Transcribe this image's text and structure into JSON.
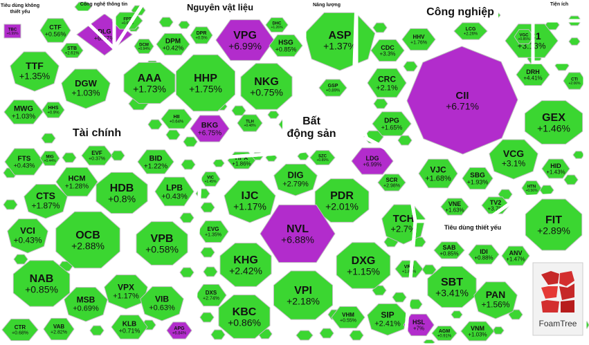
{
  "logo": {
    "text": "FoamTree"
  },
  "colors": {
    "up": "#3bd631",
    "ceiling": "#b22ccc",
    "border": "#bdbdbd",
    "text": "#111111"
  },
  "chart_data": {
    "type": "treemap",
    "groups": [
      {
        "name": "Tiêu dùng không thiết yếu"
      },
      {
        "name": "Công nghệ thông tin"
      },
      {
        "name": "Nguyên vật liệu"
      },
      {
        "name": "Năng lượng"
      },
      {
        "name": "Công nghiệp"
      },
      {
        "name": "Tiện ích"
      },
      {
        "name": "Tài chính"
      },
      {
        "name": "Bất động sản"
      },
      {
        "name": "Tiêu dùng thiết yếu"
      }
    ],
    "cells": [
      {
        "symbol": "TBC",
        "change": "+6.99%",
        "status": "ceiling"
      },
      {
        "symbol": "CTF",
        "change": "+0.56%",
        "status": "up"
      },
      {
        "symbol": "STB",
        "change": "+2.61%",
        "status": "up"
      },
      {
        "symbol": "TTF",
        "change": "+1.35%",
        "status": "up"
      },
      {
        "symbol": "DGW",
        "change": "+1.03%",
        "status": "up"
      },
      {
        "symbol": "MWG",
        "change": "+1.03%",
        "status": "up"
      },
      {
        "symbol": "HHS",
        "change": "+0.9%",
        "status": "up"
      },
      {
        "symbol": "DLG",
        "change": "+6.67%",
        "status": "ceiling"
      },
      {
        "symbol": "FPT",
        "change": "+0.68%",
        "status": "up"
      },
      {
        "symbol": "DPM",
        "change": "+0.42%",
        "status": "up"
      },
      {
        "symbol": "DPR",
        "change": "+0.5%",
        "status": "up"
      },
      {
        "symbol": "DCM",
        "change": "+0.94%",
        "status": "up"
      },
      {
        "symbol": "VPG",
        "change": "+6.99%",
        "status": "ceiling"
      },
      {
        "symbol": "DHC",
        "change": "+1.26%",
        "status": "up"
      },
      {
        "symbol": "HSG",
        "change": "+0.85%",
        "status": "up"
      },
      {
        "symbol": "AAA",
        "change": "+1.73%",
        "status": "up"
      },
      {
        "symbol": "HHP",
        "change": "+1.75%",
        "status": "up"
      },
      {
        "symbol": "NKG",
        "change": "+0.75%",
        "status": "up"
      },
      {
        "symbol": "HII",
        "change": "+0.64%",
        "status": "up"
      },
      {
        "symbol": "BKG",
        "change": "+6.75%",
        "status": "ceiling"
      },
      {
        "symbol": "TLH",
        "change": "+0.48%",
        "status": "up"
      },
      {
        "symbol": "ASP",
        "change": "+1.37%",
        "status": "up"
      },
      {
        "symbol": "GSP",
        "change": "+0.89%",
        "status": "up"
      },
      {
        "symbol": "HHV",
        "change": "+1.76%",
        "status": "up"
      },
      {
        "symbol": "LCG",
        "change": "+2.26%",
        "status": "up"
      },
      {
        "symbol": "PC1",
        "change": "+3.13%",
        "status": "up"
      },
      {
        "symbol": "VGC",
        "change": "+0.85%",
        "status": "up"
      },
      {
        "symbol": "CDC",
        "change": "+3.3%",
        "status": "up"
      },
      {
        "symbol": "CRC",
        "change": "+2.1%",
        "status": "up"
      },
      {
        "symbol": "CII",
        "change": "+6.71%",
        "status": "ceiling"
      },
      {
        "symbol": "DRH",
        "change": "+4.41%",
        "status": "up"
      },
      {
        "symbol": "CTI",
        "change": "+2.06%",
        "status": "up"
      },
      {
        "symbol": "DPG",
        "change": "+1.65%",
        "status": "up"
      },
      {
        "symbol": "GEX",
        "change": "+1.46%",
        "status": "up"
      },
      {
        "symbol": "VJC",
        "change": "+1.68%",
        "status": "up"
      },
      {
        "symbol": "VCG",
        "change": "+3.1%",
        "status": "up"
      },
      {
        "symbol": "SBG",
        "change": "+1.93%",
        "status": "up"
      },
      {
        "symbol": "HID",
        "change": "+1.43%",
        "status": "up"
      },
      {
        "symbol": "VNE",
        "change": "+1.63%",
        "status": "up"
      },
      {
        "symbol": "TV2",
        "change": "+3.7%",
        "status": "up"
      },
      {
        "symbol": "HTN",
        "change": "+0.56%",
        "status": "up"
      },
      {
        "symbol": "FTS",
        "change": "+0.43%",
        "status": "up"
      },
      {
        "symbol": "MIG",
        "change": "+0.44%",
        "status": "up"
      },
      {
        "symbol": "EVF",
        "change": "+0.37%",
        "status": "up"
      },
      {
        "symbol": "BID",
        "change": "+1.22%",
        "status": "up"
      },
      {
        "symbol": "HCM",
        "change": "+1.28%",
        "status": "up"
      },
      {
        "symbol": "CTS",
        "change": "+1.87%",
        "status": "up"
      },
      {
        "symbol": "HDB",
        "change": "+0.8%",
        "status": "up"
      },
      {
        "symbol": "LPB",
        "change": "+0.43%",
        "status": "up"
      },
      {
        "symbol": "VCI",
        "change": "+0.43%",
        "status": "up"
      },
      {
        "symbol": "OCB",
        "change": "+2.88%",
        "status": "up"
      },
      {
        "symbol": "VPB",
        "change": "+0.58%",
        "status": "up"
      },
      {
        "symbol": "NAB",
        "change": "+0.85%",
        "status": "up"
      },
      {
        "symbol": "MSB",
        "change": "+0.69%",
        "status": "up"
      },
      {
        "symbol": "VPX",
        "change": "+1.17%",
        "status": "up"
      },
      {
        "symbol": "VIB",
        "change": "+0.63%",
        "status": "up"
      },
      {
        "symbol": "CTR",
        "change": "+0.68%",
        "status": "up"
      },
      {
        "symbol": "VAB",
        "change": "+2.82%",
        "status": "up"
      },
      {
        "symbol": "KLB",
        "change": "+0.71%",
        "status": "up"
      },
      {
        "symbol": "APG",
        "change": "+6.84%",
        "status": "ceiling"
      },
      {
        "symbol": "HPX",
        "change": "+1.86%",
        "status": "up"
      },
      {
        "symbol": "SZC",
        "change": "+0.89%",
        "status": "up"
      },
      {
        "symbol": "LDG",
        "change": "+6.99%",
        "status": "ceiling"
      },
      {
        "symbol": "DIG",
        "change": "+2.79%",
        "status": "up"
      },
      {
        "symbol": "SCR",
        "change": "+2.98%",
        "status": "up"
      },
      {
        "symbol": "VIC",
        "change": "+1.45%",
        "status": "up"
      },
      {
        "symbol": "IJC",
        "change": "+1.17%",
        "status": "up"
      },
      {
        "symbol": "PDR",
        "change": "+2.01%",
        "status": "up"
      },
      {
        "symbol": "EVG",
        "change": "+1.35%",
        "status": "up"
      },
      {
        "symbol": "NVL",
        "change": "+6.88%",
        "status": "ceiling"
      },
      {
        "symbol": "TCH",
        "change": "+2.7%",
        "status": "up"
      },
      {
        "symbol": "KHG",
        "change": "+2.42%",
        "status": "up"
      },
      {
        "symbol": "DXG",
        "change": "+1.15%",
        "status": "up"
      },
      {
        "symbol": "VRE",
        "change": "+1.89%",
        "status": "up"
      },
      {
        "symbol": "DXS",
        "change": "+2.74%",
        "status": "up"
      },
      {
        "symbol": "VPI",
        "change": "+2.18%",
        "status": "up"
      },
      {
        "symbol": "KBC",
        "change": "+0.86%",
        "status": "up"
      },
      {
        "symbol": "VHM",
        "change": "+0.55%",
        "status": "up"
      },
      {
        "symbol": "SIP",
        "change": "+2.41%",
        "status": "up"
      },
      {
        "symbol": "HSL",
        "change": "+7%",
        "status": "ceiling"
      },
      {
        "symbol": "SAB",
        "change": "+0.85%",
        "status": "up"
      },
      {
        "symbol": "IDI",
        "change": "+0.88%",
        "status": "up"
      },
      {
        "symbol": "ANV",
        "change": "+1.47%",
        "status": "up"
      },
      {
        "symbol": "SBT",
        "change": "+3.41%",
        "status": "up"
      },
      {
        "symbol": "PAN",
        "change": "+1.56%",
        "status": "up"
      },
      {
        "symbol": "VNM",
        "change": "+1.03%",
        "status": "up"
      },
      {
        "symbol": "AGM",
        "change": "+0.91%",
        "status": "up"
      },
      {
        "symbol": "FIT",
        "change": "+2.89%",
        "status": "up"
      }
    ]
  }
}
